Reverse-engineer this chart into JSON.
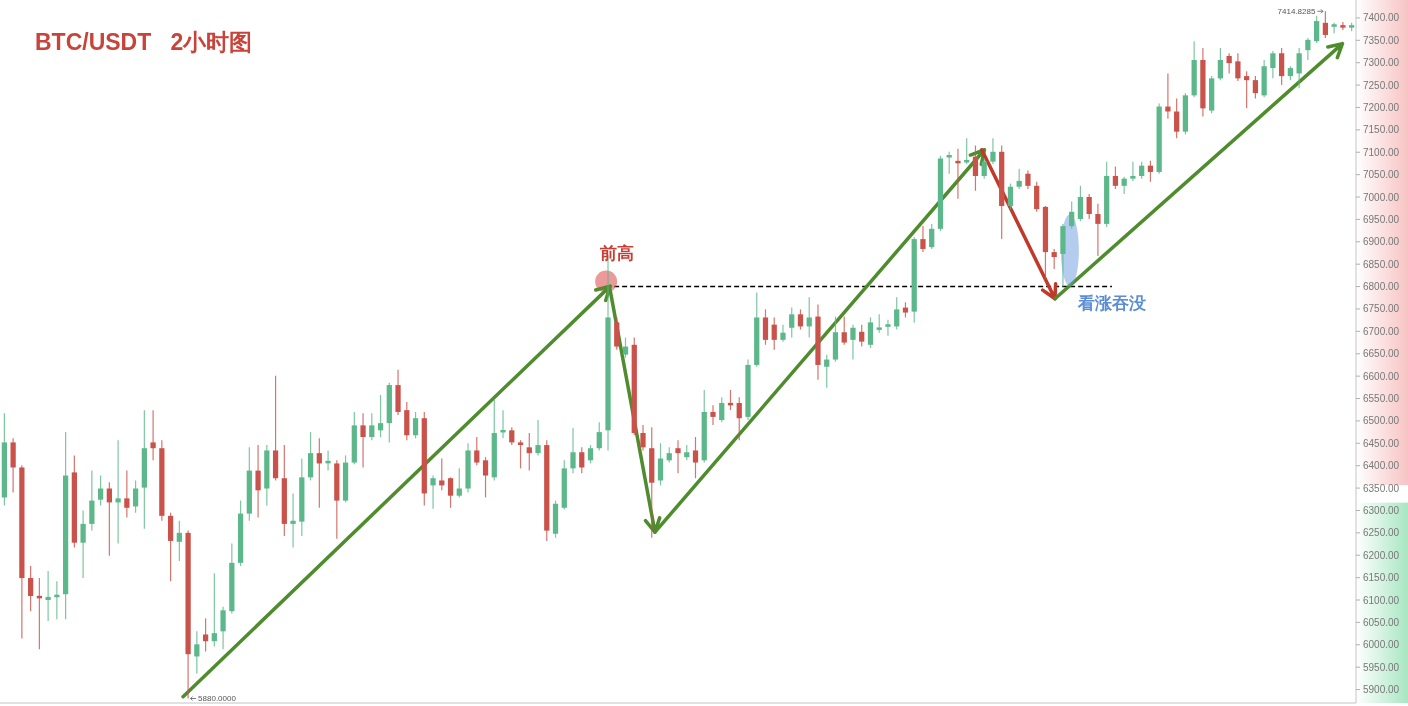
{
  "chart_data": {
    "type": "candlestick",
    "title": "BTC/USDT   2小时图",
    "categories": [
      null,
      null,
      null,
      null,
      null,
      null,
      null,
      null,
      null,
      null,
      null,
      null,
      null,
      null,
      null,
      null,
      null,
      null,
      null,
      null,
      null,
      null,
      null,
      null,
      null,
      null,
      null,
      null,
      null,
      null,
      null,
      null,
      null,
      null,
      null,
      null,
      null,
      null,
      null,
      null,
      null,
      null,
      null,
      null,
      null,
      null,
      null,
      null,
      null,
      null,
      null,
      null,
      null,
      null,
      null,
      null,
      null,
      null,
      null,
      null,
      null,
      null,
      null,
      null,
      null,
      null,
      null,
      null,
      null,
      null,
      null,
      null,
      null,
      null,
      null,
      null,
      null,
      null,
      null,
      null,
      null,
      null,
      null,
      null,
      null,
      null,
      null,
      null,
      null,
      null,
      null,
      null,
      null,
      null,
      null,
      null,
      null,
      null,
      null,
      null,
      null,
      null,
      null,
      null,
      null,
      null,
      null,
      null,
      null,
      null,
      null,
      null,
      null,
      null,
      null,
      null,
      null,
      null,
      null,
      null,
      null,
      null,
      null,
      null,
      null,
      null,
      null,
      null,
      null,
      null,
      null,
      null,
      null,
      null,
      null,
      null,
      null,
      null,
      null,
      null,
      null,
      null,
      null,
      null,
      null,
      null,
      null,
      null,
      null,
      null,
      null,
      null,
      null,
      null,
      null
    ],
    "ohlc": [
      [
        6329,
        6517,
        6311,
        6452
      ],
      [
        6452,
        6461,
        6340,
        6396
      ],
      [
        6396,
        6401,
        6014,
        6149
      ],
      [
        6149,
        6176,
        6075,
        6109
      ],
      [
        6109,
        6149,
        5990,
        6104
      ],
      [
        6100,
        6165,
        6053,
        6107
      ],
      [
        6107,
        6142,
        6057,
        6111
      ],
      [
        6113,
        6475,
        6057,
        6378
      ],
      [
        6385,
        6423,
        6217,
        6228
      ],
      [
        6228,
        6300,
        6149,
        6270
      ],
      [
        6270,
        6389,
        6255,
        6322
      ],
      [
        6324,
        6378,
        6311,
        6349
      ],
      [
        6349,
        6363,
        6199,
        6318
      ],
      [
        6318,
        6457,
        6226,
        6327
      ],
      [
        6327,
        6389,
        6284,
        6306
      ],
      [
        6309,
        6367,
        6295,
        6349
      ],
      [
        6351,
        6524,
        6259,
        6439
      ],
      [
        6452,
        6524,
        6412,
        6439
      ],
      [
        6439,
        6457,
        6277,
        6288
      ],
      [
        6288,
        6295,
        6142,
        6232
      ],
      [
        6230,
        6277,
        6187,
        6250
      ],
      [
        6250,
        6255,
        5880,
        5979
      ],
      [
        5974,
        6030,
        5936,
        6001
      ],
      [
        6023,
        6059,
        5985,
        6008
      ],
      [
        6008,
        6160,
        5996,
        6026
      ],
      [
        6030,
        6085,
        5990,
        6077
      ],
      [
        6075,
        6226,
        6070,
        6183
      ],
      [
        6183,
        6322,
        6176,
        6293
      ],
      [
        6293,
        6441,
        6277,
        6389
      ],
      [
        6389,
        6446,
        6284,
        6345
      ],
      [
        6349,
        6446,
        6311,
        6434
      ],
      [
        6434,
        6601,
        6367,
        6372
      ],
      [
        6372,
        6446,
        6243,
        6270
      ],
      [
        6270,
        6338,
        6217,
        6277
      ],
      [
        6275,
        6416,
        6243,
        6374
      ],
      [
        6374,
        6475,
        6367,
        6428
      ],
      [
        6428,
        6461,
        6306,
        6405
      ],
      [
        6407,
        6434,
        6389,
        6409
      ],
      [
        6405,
        6412,
        6237,
        6322
      ],
      [
        6322,
        6423,
        6318,
        6407
      ],
      [
        6407,
        6520,
        6403,
        6490
      ],
      [
        6490,
        6517,
        6396,
        6464
      ],
      [
        6464,
        6517,
        6457,
        6490
      ],
      [
        6479,
        6558,
        6464,
        6495
      ],
      [
        6495,
        6585,
        6452,
        6580
      ],
      [
        6580,
        6614,
        6513,
        6520
      ],
      [
        6524,
        6542,
        6457,
        6468
      ],
      [
        6468,
        6520,
        6461,
        6506
      ],
      [
        6506,
        6520,
        6311,
        6338
      ],
      [
        6356,
        6378,
        6304,
        6372
      ],
      [
        6367,
        6416,
        6345,
        6356
      ],
      [
        6372,
        6374,
        6306,
        6333
      ],
      [
        6333,
        6394,
        6329,
        6349
      ],
      [
        6349,
        6450,
        6340,
        6434
      ],
      [
        6434,
        6464,
        6401,
        6407
      ],
      [
        6412,
        6419,
        6329,
        6378
      ],
      [
        6374,
        6547,
        6367,
        6473
      ],
      [
        6475,
        6524,
        6461,
        6479
      ],
      [
        6479,
        6486,
        6446,
        6452
      ],
      [
        6452,
        6457,
        6394,
        6446
      ],
      [
        6441,
        6473,
        6389,
        6428
      ],
      [
        6428,
        6502,
        6423,
        6446
      ],
      [
        6446,
        6457,
        6232,
        6255
      ],
      [
        6248,
        6322,
        6239,
        6315
      ],
      [
        6306,
        6412,
        6302,
        6394
      ],
      [
        6394,
        6484,
        6383,
        6430
      ],
      [
        6430,
        6441,
        6383,
        6396
      ],
      [
        6412,
        6446,
        6405,
        6439
      ],
      [
        6439,
        6497,
        6434,
        6475
      ],
      [
        6479,
        6870,
        6434,
        6731
      ],
      [
        6720,
        6731,
        6659,
        6666
      ],
      [
        6648,
        6686,
        6641,
        6666
      ],
      [
        6670,
        6686,
        6468,
        6473
      ],
      [
        6473,
        6491,
        6434,
        6441
      ],
      [
        6439,
        6486,
        6239,
        6362
      ],
      [
        6367,
        6450,
        6356,
        6416
      ],
      [
        6412,
        6441,
        6407,
        6428
      ],
      [
        6439,
        6457,
        6383,
        6428
      ],
      [
        6419,
        6446,
        6412,
        6430
      ],
      [
        6434,
        6464,
        6372,
        6407
      ],
      [
        6412,
        6569,
        6407,
        6520
      ],
      [
        6520,
        6535,
        6491,
        6509
      ],
      [
        6502,
        6553,
        6497,
        6540
      ],
      [
        6540,
        6569,
        6524,
        6535
      ],
      [
        6540,
        6553,
        6457,
        6506
      ],
      [
        6509,
        6637,
        6502,
        6625
      ],
      [
        6625,
        6787,
        6621,
        6731
      ],
      [
        6731,
        6749,
        6670,
        6681
      ],
      [
        6715,
        6731,
        6659,
        6681
      ],
      [
        6681,
        6715,
        6677,
        6697
      ],
      [
        6708,
        6753,
        6686,
        6738
      ],
      [
        6738,
        6749,
        6704,
        6711
      ],
      [
        6711,
        6776,
        6686,
        6731
      ],
      [
        6733,
        6760,
        6592,
        6625
      ],
      [
        6621,
        6648,
        6574,
        6637
      ],
      [
        6637,
        6733,
        6632,
        6698
      ],
      [
        6698,
        6733,
        6670,
        6675
      ],
      [
        6681,
        6715,
        6637,
        6708
      ],
      [
        6699,
        6715,
        6666,
        6677
      ],
      [
        6670,
        6731,
        6663,
        6720
      ],
      [
        6704,
        6738,
        6697,
        6708
      ],
      [
        6711,
        6726,
        6690,
        6715
      ],
      [
        6711,
        6776,
        6704,
        6749
      ],
      [
        6753,
        6765,
        6731,
        6742
      ],
      [
        6744,
        6910,
        6720,
        6906
      ],
      [
        6906,
        6935,
        6877,
        6884
      ],
      [
        6888,
        6940,
        6884,
        6929
      ],
      [
        6929,
        7092,
        6924,
        7086
      ],
      [
        7090,
        7101,
        7052,
        7092
      ],
      [
        7079,
        7108,
        6996,
        7077
      ],
      [
        7079,
        7131,
        7074,
        7081
      ],
      [
        7090,
        7115,
        7014,
        7047
      ],
      [
        7047,
        7086,
        7041,
        7079
      ],
      [
        7079,
        7131,
        7074,
        7101
      ],
      [
        7101,
        7115,
        6906,
        6980
      ],
      [
        6980,
        7030,
        6973,
        7023
      ],
      [
        7023,
        7063,
        7018,
        7036
      ],
      [
        7052,
        7059,
        7018,
        7025
      ],
      [
        7025,
        7034,
        6967,
        6973
      ],
      [
        6978,
        6980,
        6816,
        6877
      ],
      [
        6877,
        6884,
        6839,
        6866
      ],
      [
        6873,
        6940,
        6800,
        6935
      ],
      [
        6935,
        6990,
        6929,
        6967
      ],
      [
        6951,
        7025,
        6946,
        7000
      ],
      [
        7000,
        7007,
        6951,
        6962
      ],
      [
        6962,
        6985,
        6868,
        6940
      ],
      [
        6940,
        7079,
        6933,
        7047
      ],
      [
        7047,
        7068,
        7018,
        7025
      ],
      [
        7025,
        7045,
        7007,
        7041
      ],
      [
        7041,
        7079,
        7036,
        7047
      ],
      [
        7047,
        7079,
        7041,
        7070
      ],
      [
        7070,
        7081,
        7034,
        7056
      ],
      [
        7056,
        7209,
        7052,
        7202
      ],
      [
        7202,
        7276,
        7175,
        7191
      ],
      [
        7191,
        7220,
        7131,
        7146
      ],
      [
        7146,
        7232,
        7140,
        7227
      ],
      [
        7227,
        7348,
        7223,
        7306
      ],
      [
        7306,
        7333,
        7180,
        7198
      ],
      [
        7193,
        7270,
        7187,
        7265
      ],
      [
        7265,
        7333,
        7261,
        7306
      ],
      [
        7315,
        7321,
        7276,
        7299
      ],
      [
        7303,
        7321,
        7259,
        7265
      ],
      [
        7270,
        7281,
        7198,
        7261
      ],
      [
        7261,
        7270,
        7220,
        7232
      ],
      [
        7227,
        7306,
        7223,
        7292
      ],
      [
        7288,
        7326,
        7265,
        7321
      ],
      [
        7321,
        7333,
        7250,
        7270
      ],
      [
        7270,
        7292,
        7261,
        7288
      ],
      [
        7276,
        7333,
        7243,
        7321
      ],
      [
        7328,
        7355,
        7306,
        7351
      ],
      [
        7348,
        7405,
        7344,
        7393
      ],
      [
        7389,
        7414.8285,
        7355,
        7362
      ],
      [
        7382,
        7389,
        7366,
        7384
      ],
      [
        7382,
        7391,
        7373,
        7380
      ],
      [
        7380,
        7389,
        7370,
        7382
      ]
    ],
    "ylim": [
      5870,
      7440
    ],
    "yticks": [
      {
        "value": 5900,
        "label": "5900.00"
      },
      {
        "value": 5950,
        "label": "5950.00"
      },
      {
        "value": 6000,
        "label": "6000.00"
      },
      {
        "value": 6050,
        "label": "6050.00"
      },
      {
        "value": 6100,
        "label": "6100.00"
      },
      {
        "value": 6150,
        "label": "6150.00"
      },
      {
        "value": 6200,
        "label": "6200.00"
      },
      {
        "value": 6250,
        "label": "6250.00"
      },
      {
        "value": 6300,
        "label": "6300.00"
      },
      {
        "value": 6350,
        "label": "6350.00"
      },
      {
        "value": 6400,
        "label": "6400.00"
      },
      {
        "value": 6450,
        "label": "6450.00"
      },
      {
        "value": 6500,
        "label": "6500.00"
      },
      {
        "value": 6550,
        "label": "6550.00"
      },
      {
        "value": 6600,
        "label": "6600.00"
      },
      {
        "value": 6650,
        "label": "6650.00"
      },
      {
        "value": 6700,
        "label": "6700.00"
      },
      {
        "value": 6750,
        "label": "6750.00"
      },
      {
        "value": 6800,
        "label": "6800.00"
      },
      {
        "value": 6850,
        "label": "6850.00"
      },
      {
        "value": 6900,
        "label": "6900.00"
      },
      {
        "value": 6950,
        "label": "6950.00"
      },
      {
        "value": 7000,
        "label": "7000.00"
      },
      {
        "value": 7050,
        "label": "7050.00"
      },
      {
        "value": 7100,
        "label": "7100.00"
      },
      {
        "value": 7150,
        "label": "7150.00"
      },
      {
        "value": 7200,
        "label": "7200.00"
      },
      {
        "value": 7250,
        "label": "7250.00"
      },
      {
        "value": 7300,
        "label": "7300.00"
      },
      {
        "value": 7350,
        "label": "7350.00"
      },
      {
        "value": 7400,
        "label": "7400.00"
      }
    ],
    "tick_labels": "y",
    "ref_lines": [
      {
        "axis": "y",
        "value": 6800,
        "label": "前高",
        "color": "#000000",
        "line_style": "dashed"
      }
    ],
    "annotations": [
      "7414.8285",
      "5880.0000",
      "看涨吞没"
    ]
  }
}
